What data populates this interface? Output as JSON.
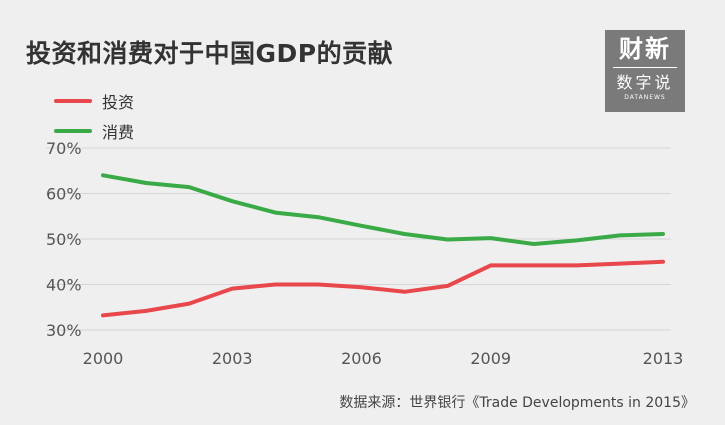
{
  "title": "投资和消费对于中国GDP的贡献",
  "logo": {
    "top": "财新",
    "middle": "数字说",
    "small": "DATANEWS"
  },
  "source": "数据来源：世界银行《Trade Developments in 2015》",
  "chart_data": {
    "type": "line",
    "x": [
      2000,
      2001,
      2002,
      2003,
      2004,
      2005,
      2006,
      2007,
      2008,
      2009,
      2010,
      2011,
      2012,
      2013
    ],
    "xticks": [
      "2000",
      "2003",
      "2006",
      "2009",
      "2013"
    ],
    "xtick_values": [
      2000,
      2003,
      2006,
      2009,
      2013
    ],
    "yticks": [
      "30%",
      "40%",
      "50%",
      "60%",
      "70%"
    ],
    "ytick_values": [
      30,
      40,
      50,
      60,
      70
    ],
    "ylim": [
      30,
      70
    ],
    "xlim": [
      2000,
      2013
    ],
    "series": [
      {
        "name": "投资",
        "color": "#e8474c",
        "values": [
          33.2,
          34.2,
          35.8,
          39.1,
          40.0,
          40.0,
          39.4,
          38.4,
          39.7,
          44.2,
          44.2,
          44.2,
          44.6,
          45.0
        ]
      },
      {
        "name": "消费",
        "color": "#3aaa47",
        "values": [
          64.0,
          62.3,
          61.4,
          58.3,
          55.8,
          54.8,
          52.9,
          51.1,
          49.9,
          50.2,
          48.9,
          49.7,
          50.8,
          51.1
        ]
      }
    ],
    "grid": true,
    "legend": "top-left"
  }
}
